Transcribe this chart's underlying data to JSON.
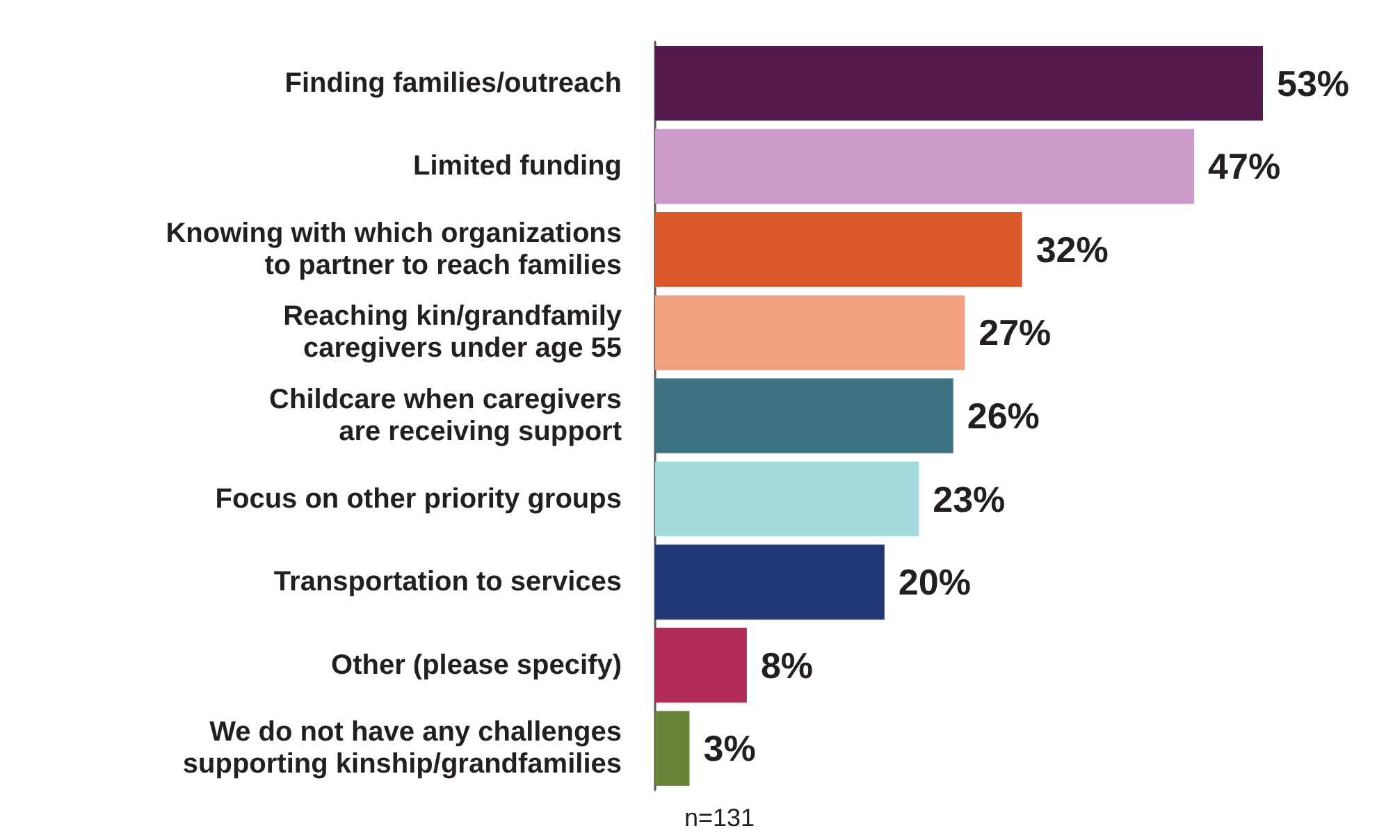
{
  "chart_data": {
    "type": "bar",
    "orientation": "horizontal",
    "categories": [
      "Finding families/outreach",
      "Limited funding",
      "Knowing with which organizations\nto partner to reach families",
      "Reaching kin/grandfamily\ncaregivers under age 55",
      "Childcare when caregivers\nare receiving support",
      "Focus on other priority groups",
      "Transportation to services",
      "Other (please specify)",
      "We do not have any challenges\nsupporting kinship/grandfamilies"
    ],
    "values": [
      53,
      47,
      32,
      27,
      26,
      23,
      20,
      8,
      3
    ],
    "colors": [
      "#541a4c",
      "#cd9bc9",
      "#db5829",
      "#f2a280",
      "#3e7382",
      "#a3dadb",
      "#233876",
      "#b22b56",
      "#6a8236"
    ],
    "value_labels": [
      "53%",
      "47%",
      "32%",
      "27%",
      "26%",
      "23%",
      "20%",
      "8%",
      "3%"
    ],
    "annotations": [
      "n=131"
    ]
  }
}
